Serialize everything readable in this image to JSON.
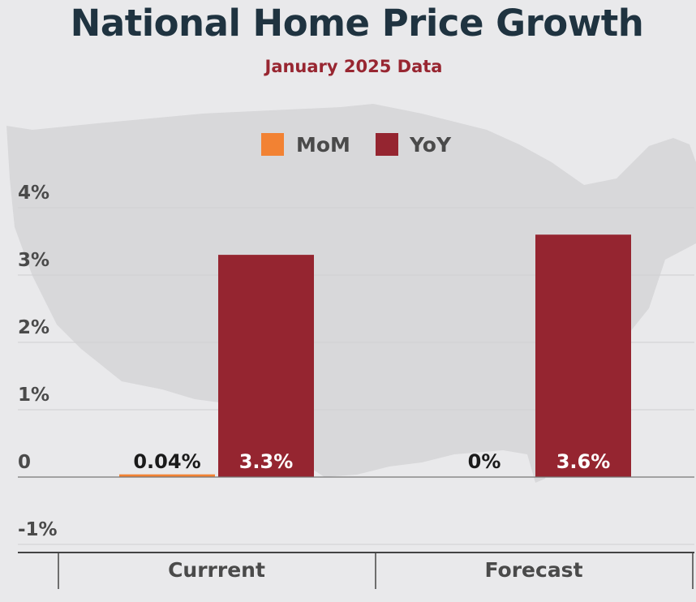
{
  "title": "National Home Price Growth",
  "subtitle": "January 2025 Data",
  "colors": {
    "mom": "#f28233",
    "yoy": "#952530",
    "title": "#1f3340",
    "subtitle": "#982631",
    "background": "#e9e9eb",
    "map": "#d8d8da"
  },
  "chart_data": {
    "type": "bar",
    "title": "National Home Price Growth",
    "subtitle": "January 2025 Data",
    "categories": [
      "Currrent",
      "Forecast"
    ],
    "series": [
      {
        "name": "MoM",
        "values": [
          0.04,
          0
        ],
        "labels": [
          "0.04%",
          "0%"
        ]
      },
      {
        "name": "YoY",
        "values": [
          3.3,
          3.6
        ],
        "labels": [
          "3.3%",
          "3.6%"
        ]
      }
    ],
    "yticks": [
      {
        "value": 4,
        "label": "4%"
      },
      {
        "value": 3,
        "label": "3%"
      },
      {
        "value": 2,
        "label": "2%"
      },
      {
        "value": 1,
        "label": "1%"
      },
      {
        "value": 0,
        "label": "0"
      },
      {
        "value": -1,
        "label": "-1%"
      }
    ],
    "ylim": [
      -1,
      4
    ],
    "grid": true,
    "legend_position": "top-center",
    "xlabel": "",
    "ylabel": ""
  }
}
